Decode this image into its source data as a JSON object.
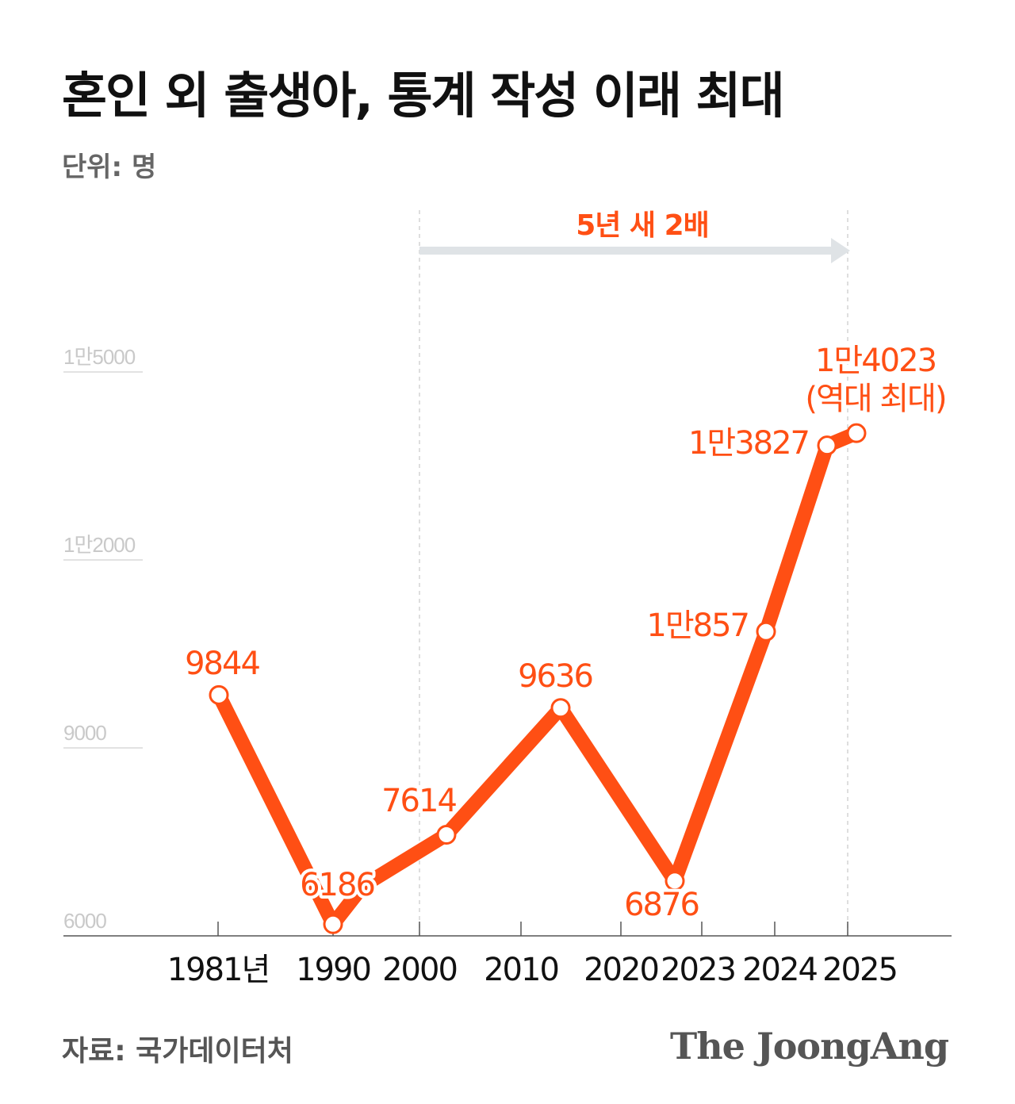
{
  "title": "혼인 외 출생아, 통계 작성 이래 최대",
  "unit": "단위: 명",
  "source": "자료: 국가데이터처",
  "logo": "The JoongAng",
  "colors": {
    "line": "#ff4f14",
    "grid": "#d9d9d9",
    "arrow": "#dfe3e6",
    "axis": "#555555"
  },
  "chart_data": {
    "type": "line",
    "categories": [
      "1981년",
      "1990",
      "2000",
      "2010",
      "2020",
      "2023",
      "2024",
      "2025"
    ],
    "x_ticks": [
      "1981년",
      "1990",
      "2000",
      "2010",
      "2020",
      "2023",
      "2024",
      "2025"
    ],
    "points": [
      {
        "value": 9844,
        "label": "9844"
      },
      {
        "value": 6186,
        "label": "6186"
      },
      {
        "value": 6800,
        "label": ""
      },
      {
        "value": 7614,
        "label": "7614"
      },
      {
        "value": 9636,
        "label": "9636"
      },
      {
        "value": 6876,
        "label": "6876"
      },
      {
        "value": 10857,
        "label": "1만857"
      },
      {
        "value": 13827,
        "label": "1만3827"
      },
      {
        "value": 14023,
        "label": "1만4023",
        "note": "(역대 최대)"
      }
    ],
    "yticks": [
      {
        "value": 6000,
        "label": "6000"
      },
      {
        "value": 9000,
        "label": "9000"
      },
      {
        "value": 12000,
        "label": "1만2000"
      },
      {
        "value": 15000,
        "label": "1만5000"
      }
    ],
    "ylim": [
      6000,
      15000
    ],
    "annotation": {
      "text": "5년 새 2배"
    },
    "grid": false,
    "legend": "none"
  }
}
